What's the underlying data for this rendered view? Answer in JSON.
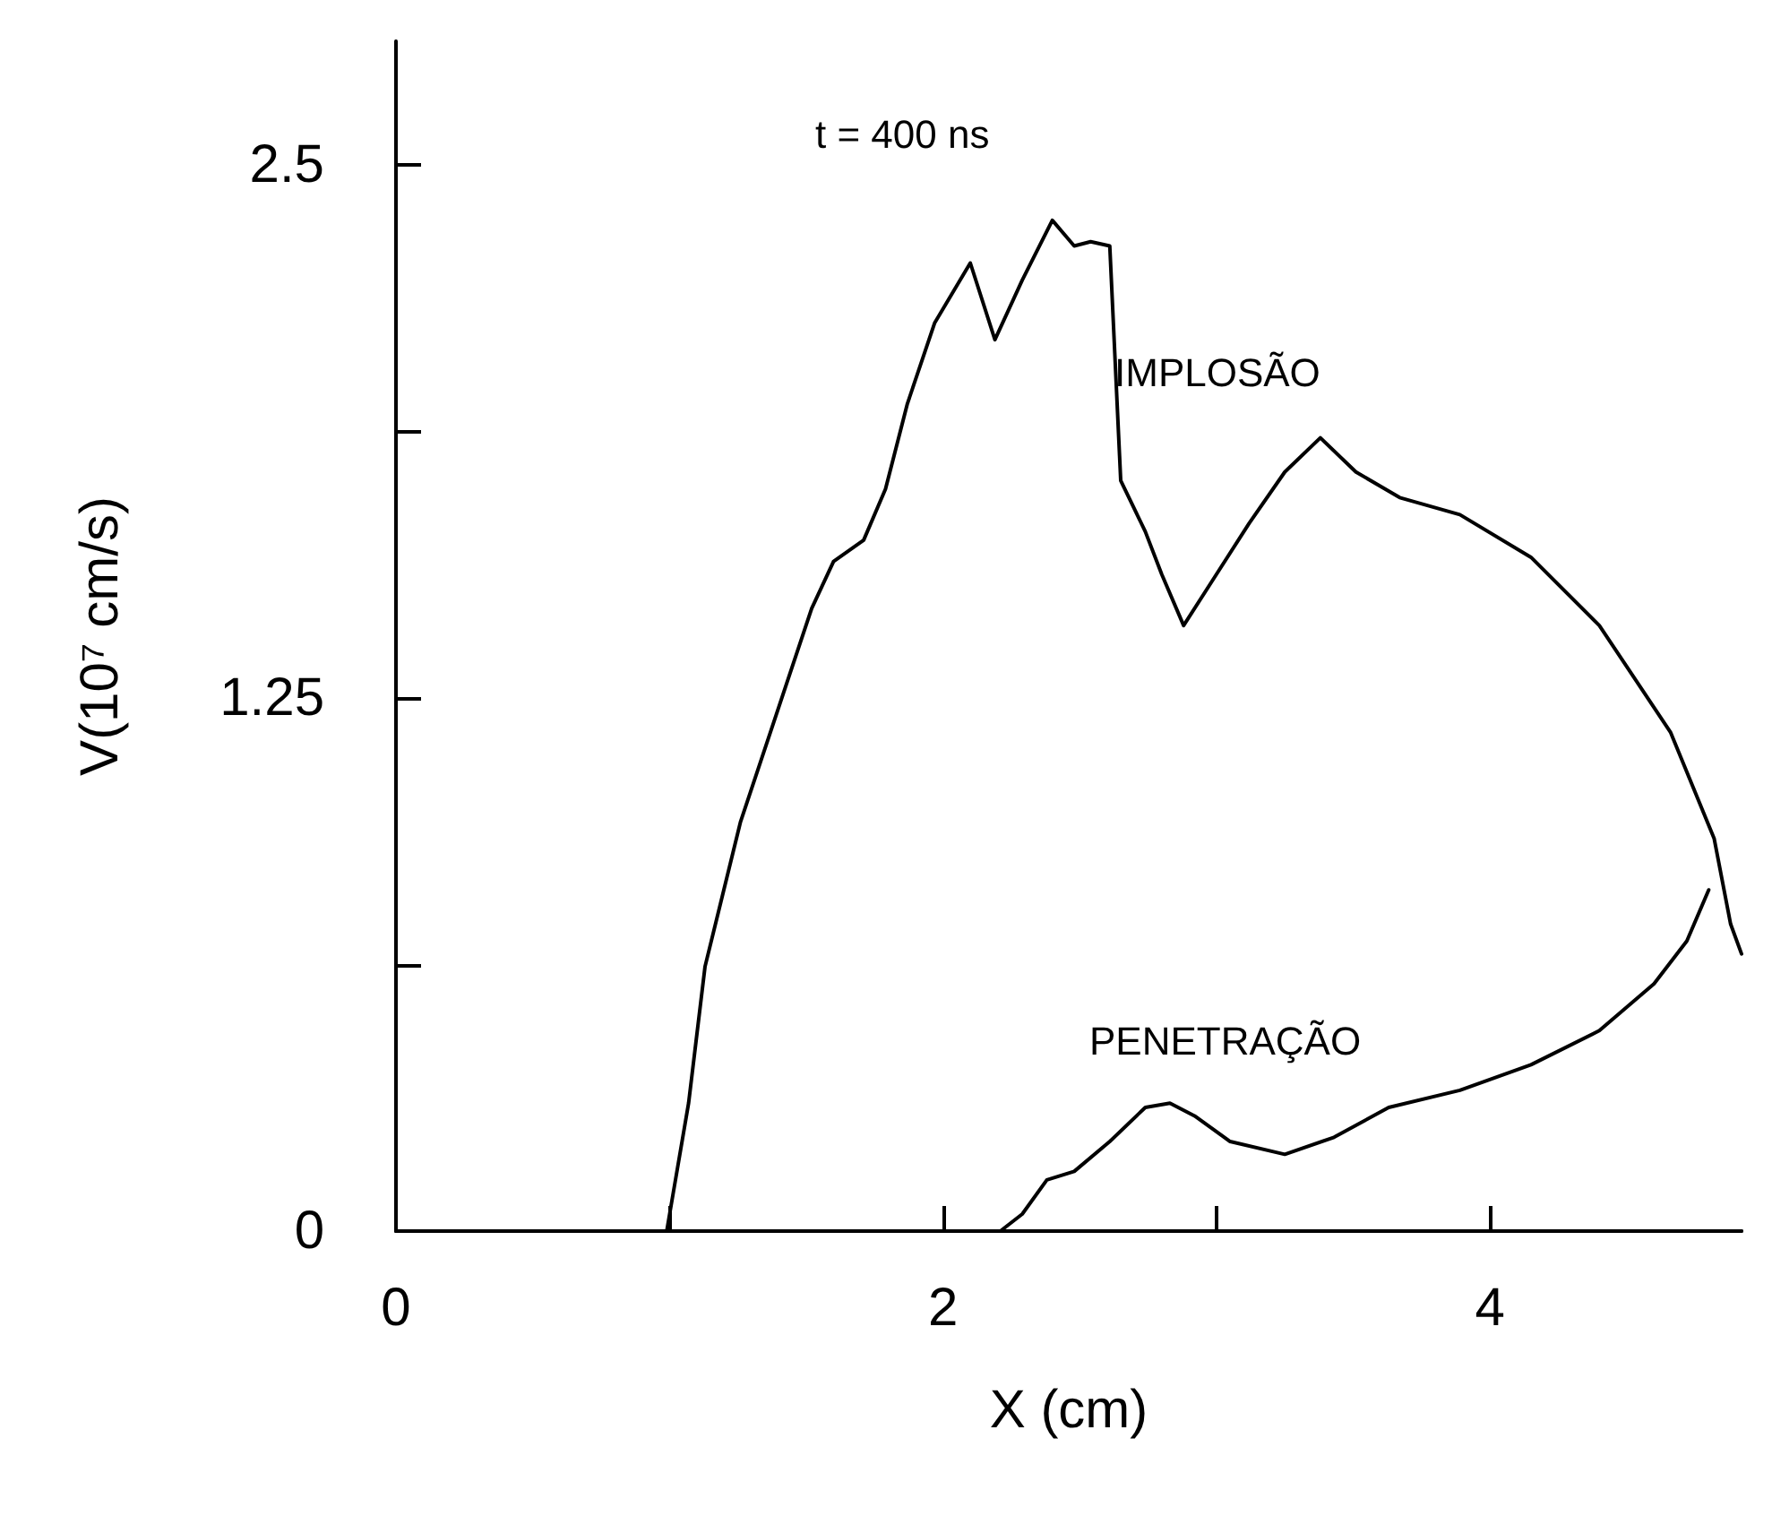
{
  "chart_data": {
    "type": "line",
    "xlabel": "X (cm)",
    "ylabel": "V(10⁷ cm/s)",
    "xlim": [
      0,
      4.92
    ],
    "ylim": [
      0,
      2.79
    ],
    "xticks": [
      0,
      {
        "value": 1,
        "label": null
      },
      2,
      {
        "value": 3,
        "label": null
      },
      4
    ],
    "yticks": [
      0,
      {
        "value": 0.625,
        "label": null
      },
      1.25,
      {
        "value": 1.875,
        "label": null
      },
      2.5
    ],
    "grid": false,
    "marker": "none",
    "line_style": "solid",
    "annotations": [
      "t = 400 ns",
      "IMPLOSÃO",
      "PENETRAÇÃO"
    ],
    "series": [
      {
        "color": "#000000",
        "x": [
          0.99,
          1.07,
          1.13,
          1.26,
          1.39,
          1.52,
          1.6,
          1.71,
          1.79,
          1.87,
          1.97,
          2.1,
          2.19,
          2.29,
          2.4,
          2.48,
          2.54,
          2.61,
          2.65,
          2.74,
          2.8,
          2.88,
          2.99,
          3.12,
          3.25,
          3.38,
          3.51,
          3.67,
          3.89,
          4.15,
          4.4,
          4.66,
          4.82,
          4.88,
          4.92
        ],
        "values": [
          0,
          0.3,
          0.62,
          0.96,
          1.21,
          1.46,
          1.57,
          1.62,
          1.74,
          1.94,
          2.13,
          2.27,
          2.09,
          2.23,
          2.37,
          2.31,
          2.32,
          2.31,
          1.76,
          1.64,
          1.54,
          1.42,
          1.53,
          1.66,
          1.78,
          1.86,
          1.78,
          1.72,
          1.68,
          1.58,
          1.42,
          1.17,
          0.92,
          0.72,
          0.65
        ]
      },
      {
        "color": "#000000",
        "x": [
          2.21,
          2.29,
          2.38,
          2.48,
          2.61,
          2.74,
          2.83,
          2.92,
          3.05,
          3.25,
          3.43,
          3.63,
          3.89,
          4.15,
          4.4,
          4.6,
          4.72,
          4.8
        ],
        "values": [
          0,
          0.04,
          0.12,
          0.14,
          0.21,
          0.29,
          0.3,
          0.27,
          0.21,
          0.18,
          0.22,
          0.29,
          0.33,
          0.39,
          0.47,
          0.58,
          0.68,
          0.8
        ]
      }
    ]
  }
}
